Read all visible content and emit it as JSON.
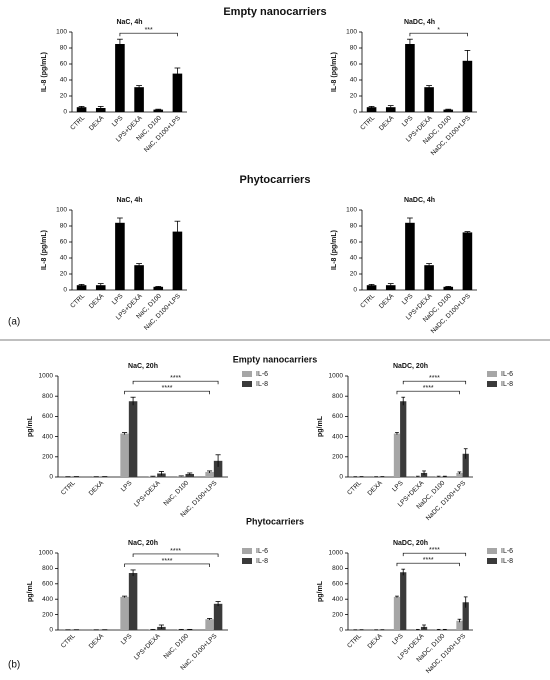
{
  "panel_a": {
    "label": "(a)",
    "headings": [
      "Empty nanocarriers",
      "Phytocarriers"
    ]
  },
  "panel_b": {
    "label": "(b)",
    "headings": [
      "Empty nanocarriers",
      "Phytocarriers"
    ]
  },
  "chart_data": [
    {
      "type": "bar",
      "title": "NaC, 4h",
      "ylabel": "IL-8 (pg/mL)",
      "categories": [
        "CTRL",
        "DEXA",
        "LPS",
        "LPS+DEXA",
        "NaC, D100",
        "NaC, D100+LPS"
      ],
      "values": [
        6,
        5,
        85,
        31,
        3,
        48
      ],
      "errors": [
        1,
        2,
        6,
        2,
        0.5,
        7
      ],
      "color": "#000000",
      "ylim": [
        0,
        100
      ],
      "yticks": [
        0,
        20,
        40,
        60,
        80,
        100
      ],
      "significance": [
        {
          "from": 2,
          "to": 5,
          "label": "***"
        }
      ]
    },
    {
      "type": "bar",
      "title": "NaDC, 4h",
      "ylabel": "IL-8 (pg/mL)",
      "categories": [
        "CTRL",
        "DEXA",
        "LPS",
        "LPS+DEXA",
        "NaDC, D100",
        "NaDC, D100+LPS"
      ],
      "values": [
        6,
        6,
        85,
        31,
        3,
        64
      ],
      "errors": [
        1,
        2,
        6,
        2,
        0.5,
        13
      ],
      "color": "#000000",
      "ylim": [
        0,
        100
      ],
      "yticks": [
        0,
        20,
        40,
        60,
        80,
        100
      ],
      "significance": [
        {
          "from": 2,
          "to": 5,
          "label": "*"
        }
      ]
    },
    {
      "type": "bar",
      "title": "NaC, 4h",
      "ylabel": "IL-8 (pg/mL)",
      "categories": [
        "CTRL",
        "DEXA",
        "LPS",
        "LPS+DEXA",
        "NaC, D100",
        "NaC, D100+LPS"
      ],
      "values": [
        6,
        6,
        84,
        31,
        4,
        73
      ],
      "errors": [
        1,
        2,
        6,
        2,
        0.5,
        13
      ],
      "color": "#000000",
      "ylim": [
        0,
        100
      ],
      "yticks": [
        0,
        20,
        40,
        60,
        80,
        100
      ],
      "significance": []
    },
    {
      "type": "bar",
      "title": "NaDC, 4h",
      "ylabel": "IL-8 (pg/mL)",
      "categories": [
        "CTRL",
        "DEXA",
        "LPS",
        "LPS+DEXA",
        "NaDC, D100",
        "NaDC, D100+LPS"
      ],
      "values": [
        6,
        6,
        84,
        31,
        4,
        72
      ],
      "errors": [
        1,
        2,
        6,
        2,
        0.5,
        1
      ],
      "color": "#000000",
      "ylim": [
        0,
        100
      ],
      "yticks": [
        0,
        20,
        40,
        60,
        80,
        100
      ],
      "significance": []
    },
    {
      "type": "bar",
      "title": "NaC, 20h",
      "ylabel": "pg/mL",
      "categories": [
        "CTRL",
        "DEXA",
        "LPS",
        "LPS+DEXA",
        "NaC, D100",
        "NaC, D100+LPS"
      ],
      "series": [
        {
          "name": "IL-6",
          "color": "#a6a6a6",
          "values": [
            2,
            2,
            430,
            5,
            8,
            50
          ],
          "errors": [
            1,
            1,
            10,
            3,
            3,
            10
          ]
        },
        {
          "name": "IL-8",
          "color": "#3a3a3a",
          "values": [
            3,
            3,
            750,
            35,
            30,
            160
          ],
          "errors": [
            1,
            1,
            40,
            20,
            10,
            60
          ]
        }
      ],
      "ylim": [
        0,
        1000
      ],
      "yticks": [
        0,
        200,
        400,
        600,
        800,
        1000
      ],
      "legend": "upper right outside",
      "significance": [
        {
          "from": 2,
          "to": 5,
          "label": "****"
        },
        {
          "from": 2,
          "to": 5,
          "label": "****"
        }
      ]
    },
    {
      "type": "bar",
      "title": "NaDC, 20h",
      "ylabel": "pg/mL",
      "categories": [
        "CTRL",
        "DEXA",
        "LPS",
        "LPS+DEXA",
        "NaDC, D100",
        "NaDC, D100+LPS"
      ],
      "series": [
        {
          "name": "IL-6",
          "color": "#a6a6a6",
          "values": [
            2,
            2,
            430,
            5,
            5,
            40
          ],
          "errors": [
            1,
            1,
            10,
            3,
            3,
            10
          ]
        },
        {
          "name": "IL-8",
          "color": "#3a3a3a",
          "values": [
            3,
            3,
            750,
            40,
            5,
            230
          ],
          "errors": [
            1,
            1,
            40,
            20,
            3,
            50
          ]
        }
      ],
      "ylim": [
        0,
        1000
      ],
      "yticks": [
        0,
        200,
        400,
        600,
        800,
        1000
      ],
      "legend": "upper right outside",
      "significance": [
        {
          "from": 2,
          "to": 5,
          "label": "****"
        },
        {
          "from": 2,
          "to": 5,
          "label": "****"
        }
      ]
    },
    {
      "type": "bar",
      "title": "NaC, 20h",
      "ylabel": "pg/mL",
      "categories": [
        "CTRL",
        "DEXA",
        "LPS",
        "LPS+DEXA",
        "NaC, D100",
        "NaC, D100+LPS"
      ],
      "series": [
        {
          "name": "IL-6",
          "color": "#a6a6a6",
          "values": [
            2,
            2,
            430,
            5,
            5,
            140
          ],
          "errors": [
            1,
            1,
            10,
            3,
            3,
            10
          ]
        },
        {
          "name": "IL-8",
          "color": "#3a3a3a",
          "values": [
            3,
            3,
            740,
            40,
            5,
            340
          ],
          "errors": [
            1,
            1,
            40,
            25,
            3,
            30
          ]
        }
      ],
      "ylim": [
        0,
        1000
      ],
      "yticks": [
        0,
        200,
        400,
        600,
        800,
        1000
      ],
      "legend": "upper right outside",
      "significance": [
        {
          "from": 2,
          "to": 5,
          "label": "****"
        },
        {
          "from": 2,
          "to": 5,
          "label": "****"
        }
      ]
    },
    {
      "type": "bar",
      "title": "NaDC, 20h",
      "ylabel": "pg/mL",
      "categories": [
        "CTRL",
        "DEXA",
        "LPS",
        "LPS+DEXA",
        "NaDC, D100",
        "NaDC, D100+LPS"
      ],
      "series": [
        {
          "name": "IL-6",
          "color": "#a6a6a6",
          "values": [
            2,
            2,
            430,
            5,
            5,
            120
          ],
          "errors": [
            1,
            1,
            10,
            3,
            3,
            20
          ]
        },
        {
          "name": "IL-8",
          "color": "#3a3a3a",
          "values": [
            3,
            3,
            750,
            40,
            5,
            360
          ],
          "errors": [
            1,
            1,
            40,
            25,
            3,
            70
          ]
        }
      ],
      "ylim": [
        0,
        1000
      ],
      "yticks": [
        0,
        200,
        400,
        600,
        800,
        1000
      ],
      "legend": "upper right outside",
      "significance": [
        {
          "from": 2,
          "to": 5,
          "label": "****"
        },
        {
          "from": 2,
          "to": 5,
          "label": "****"
        }
      ]
    }
  ]
}
